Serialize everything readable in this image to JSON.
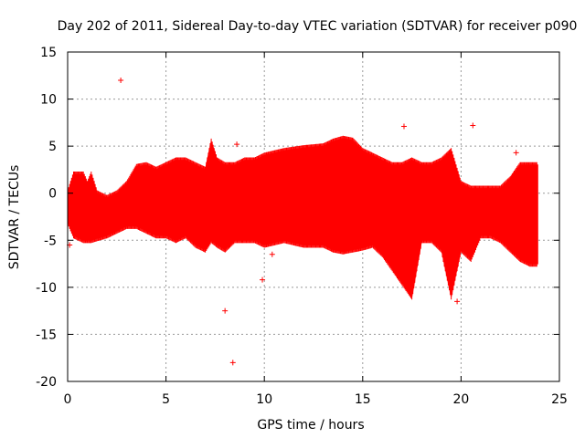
{
  "chart_data": {
    "type": "scatter",
    "title": "Day 202 of 2011, Sidereal Day-to-day VTEC variation (SDTVAR) for receiver p090",
    "xlabel": "GPS time / hours",
    "ylabel": "SDTVAR / TECUs",
    "xlim": [
      0,
      25
    ],
    "ylim": [
      -20,
      15
    ],
    "xticks": [
      0,
      5,
      10,
      15,
      20,
      25
    ],
    "yticks": [
      -20,
      -15,
      -10,
      -5,
      0,
      5,
      10,
      15
    ],
    "grid": true,
    "marker": "+",
    "color": "#ff0000",
    "envelope": {
      "x": [
        0.0,
        0.3,
        0.8,
        1.0,
        1.2,
        1.5,
        2.0,
        2.5,
        3.0,
        3.5,
        4.0,
        4.5,
        5.0,
        5.5,
        6.0,
        6.5,
        7.0,
        7.3,
        7.6,
        8.0,
        8.5,
        9.0,
        9.5,
        10.0,
        11.0,
        12.0,
        13.0,
        13.5,
        14.0,
        14.5,
        15.0,
        15.5,
        16.0,
        16.5,
        17.0,
        17.5,
        18.0,
        18.5,
        19.0,
        19.5,
        20.0,
        20.5,
        21.0,
        21.5,
        22.0,
        22.5,
        23.0,
        23.5,
        23.9
      ],
      "upper": [
        0.0,
        2.0,
        2.0,
        1.0,
        2.0,
        0.0,
        -0.5,
        0.0,
        1.0,
        2.8,
        3.0,
        2.5,
        3.0,
        3.5,
        3.5,
        3.0,
        2.5,
        5.5,
        3.5,
        3.0,
        3.0,
        3.5,
        3.5,
        4.0,
        4.5,
        4.8,
        5.0,
        5.5,
        5.8,
        5.6,
        4.5,
        4.0,
        3.5,
        3.0,
        3.0,
        3.5,
        3.0,
        3.0,
        3.5,
        4.5,
        1.0,
        0.5,
        0.5,
        0.5,
        0.5,
        1.5,
        3.0,
        3.0,
        3.0
      ],
      "lower": [
        -3.0,
        -4.5,
        -5.0,
        -5.0,
        -5.0,
        -4.8,
        -4.5,
        -4.0,
        -3.5,
        -3.5,
        -4.0,
        -4.5,
        -4.5,
        -5.0,
        -4.5,
        -5.5,
        -6.0,
        -5.0,
        -5.5,
        -6.0,
        -5.0,
        -5.0,
        -5.0,
        -5.5,
        -5.0,
        -5.5,
        -5.5,
        -6.0,
        -6.2,
        -6.0,
        -5.8,
        -5.5,
        -6.5,
        -8.0,
        -9.5,
        -11.0,
        -5.0,
        -5.0,
        -6.0,
        -11.0,
        -6.0,
        -7.0,
        -4.5,
        -4.5,
        -5.0,
        -6.0,
        -7.0,
        -7.5,
        -7.5
      ]
    },
    "outliers": {
      "x": [
        2.7,
        8.0,
        8.4,
        9.9,
        17.1,
        20.6,
        22.8,
        8.6,
        10.4,
        19.8,
        0.1
      ],
      "y": [
        12.0,
        -12.5,
        -18.0,
        -9.2,
        7.1,
        7.2,
        4.3,
        5.2,
        -6.5,
        -11.5,
        -5.5
      ]
    }
  }
}
